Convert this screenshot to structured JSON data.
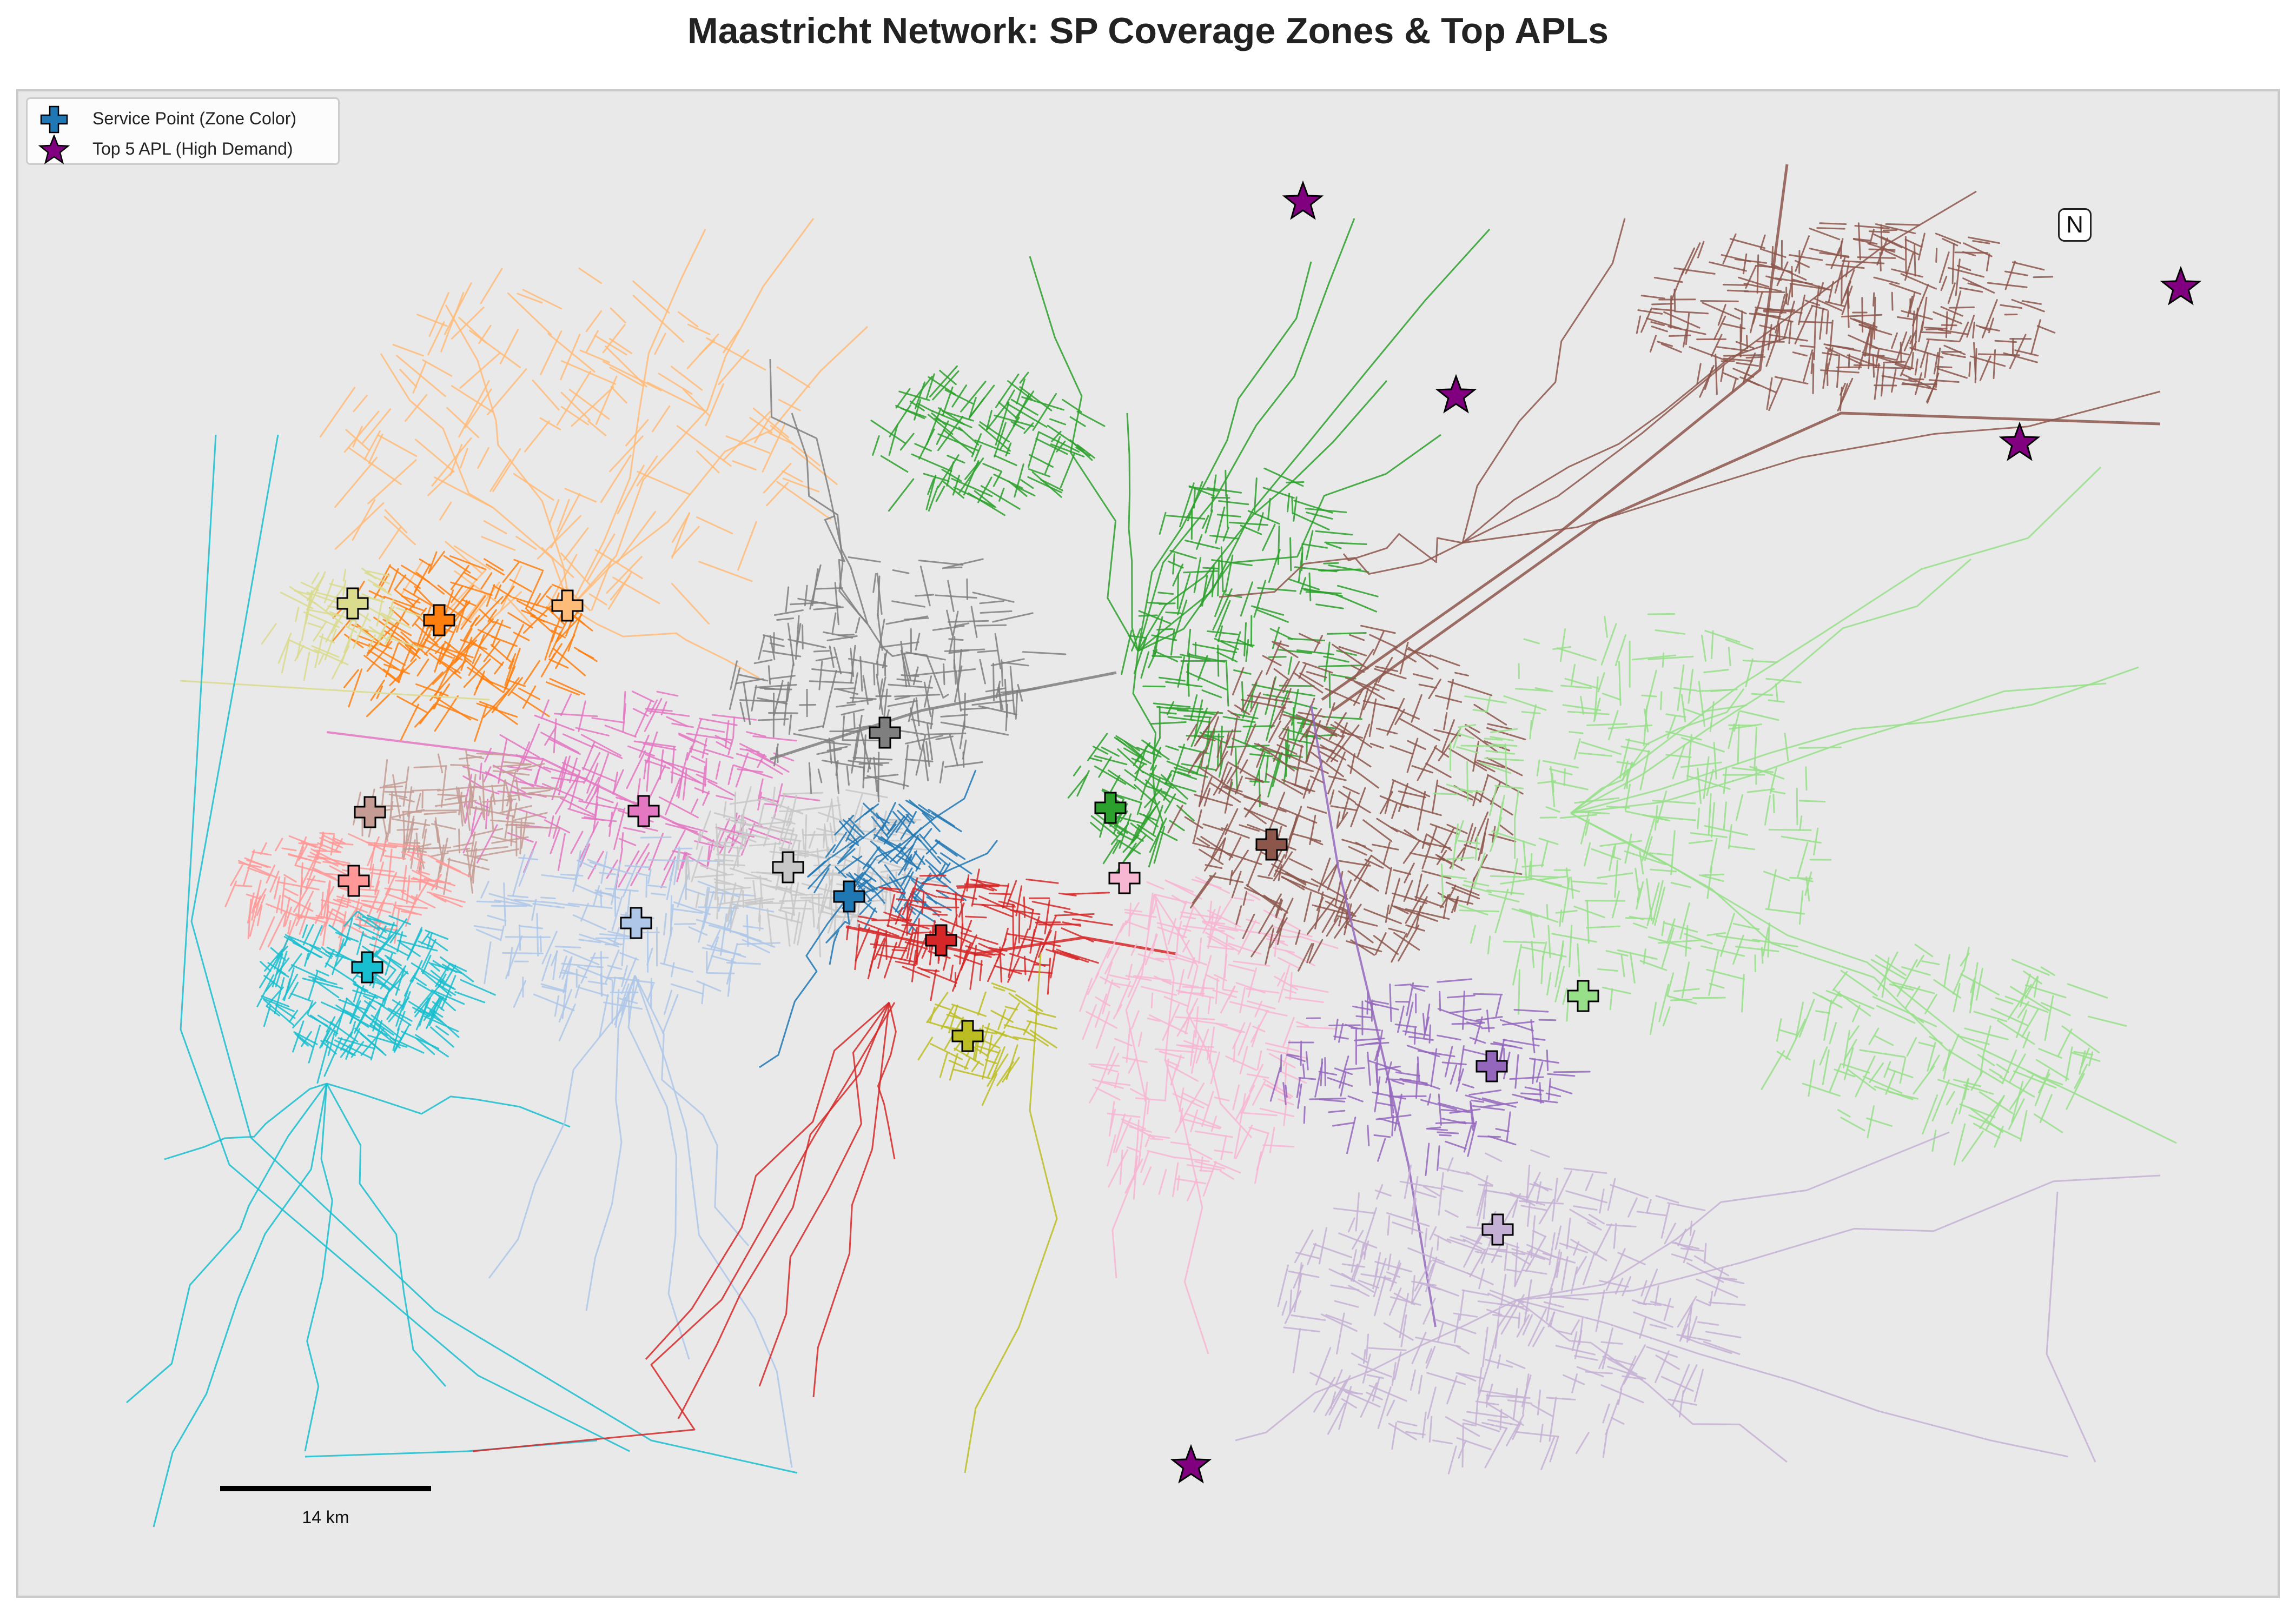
{
  "title": "Maastricht Network: SP Coverage Zones & Top APLs",
  "legend": {
    "items": [
      {
        "label": "Service Point (Zone Color)",
        "marker": "plus-icon",
        "color": "#1f77b4"
      },
      {
        "label": "Top 5 APL (High Demand)",
        "marker": "star-icon",
        "color": "#800080"
      }
    ]
  },
  "north_label": "N",
  "scale_bar": {
    "label": "14 km"
  },
  "colors": {
    "background": "#e9e9e9",
    "apl_star": "#800080"
  },
  "zones": [
    {
      "id": "blue",
      "color": "#1f77b4"
    },
    {
      "id": "orange",
      "color": "#ff7f0e"
    },
    {
      "id": "light-orange",
      "color": "#ffbb78"
    },
    {
      "id": "green",
      "color": "#2ca02c"
    },
    {
      "id": "light-green",
      "color": "#98df8a"
    },
    {
      "id": "red",
      "color": "#d62728"
    },
    {
      "id": "salmon",
      "color": "#ff9896"
    },
    {
      "id": "purple",
      "color": "#9467bd"
    },
    {
      "id": "lavender",
      "color": "#c5b0d5"
    },
    {
      "id": "brown",
      "color": "#8c564b"
    },
    {
      "id": "tan",
      "color": "#c49c94"
    },
    {
      "id": "pink",
      "color": "#e377c2"
    },
    {
      "id": "light-pink",
      "color": "#f7b6d2"
    },
    {
      "id": "gray",
      "color": "#7f7f7f"
    },
    {
      "id": "light-gray",
      "color": "#c7c7c7"
    },
    {
      "id": "olive",
      "color": "#bcbd22"
    },
    {
      "id": "khaki",
      "color": "#dbdb8d"
    },
    {
      "id": "cyan",
      "color": "#17becf"
    },
    {
      "id": "light-blue",
      "color": "#aec7e8"
    }
  ]
}
